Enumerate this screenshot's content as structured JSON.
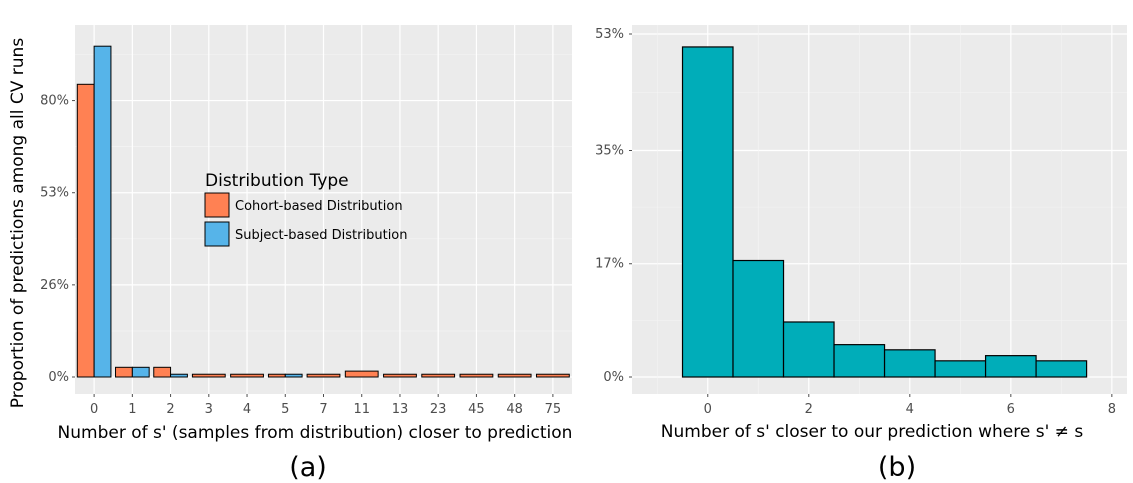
{
  "chart_data": [
    {
      "type": "bar",
      "panel_label": "(a)",
      "xlabel": "Number of s' (samples from distribution) closer to prediction",
      "ylabel": "Proportion of predictions among all CV runs",
      "categories": [
        "0",
        "1",
        "2",
        "3",
        "4",
        "5",
        "7",
        "11",
        "13",
        "23",
        "45",
        "48",
        "75"
      ],
      "yticks": [
        "0%",
        "26%",
        "53%",
        "80%"
      ],
      "ylim": [
        0,
        0.97
      ],
      "grid": true,
      "legend": {
        "title": "Distribution Type",
        "placement": "inside-center",
        "entries": [
          "Cohort-based Distribution",
          "Subject-based Distribution"
        ]
      },
      "series": [
        {
          "name": "Cohort-based Distribution",
          "color": "#ff8153",
          "values": [
            0.845,
            0.028,
            0.028,
            0.008,
            0.008,
            0.008,
            0.008,
            0.017,
            0.008,
            0.008,
            0.008,
            0.008,
            0.008
          ]
        },
        {
          "name": "Subject-based Distribution",
          "color": "#56b4e9",
          "values": [
            0.955,
            0.028,
            0.008,
            null,
            null,
            0.008,
            null,
            null,
            null,
            null,
            null,
            null,
            null
          ]
        }
      ]
    },
    {
      "type": "bar",
      "panel_label": "(b)",
      "xlabel": "Number of s' closer to our prediction where s' ≠ s",
      "ylabel": "",
      "bar_color": "#00adb9",
      "bins": [
        0,
        1,
        2,
        3,
        4,
        5,
        6,
        7
      ],
      "values": [
        0.51,
        0.18,
        0.085,
        0.05,
        0.042,
        0.025,
        0.033,
        0.025
      ],
      "xticks": [
        "0",
        "2",
        "4",
        "6",
        "8"
      ],
      "yticks": [
        "0%",
        "17%",
        "35%",
        "53%"
      ],
      "xlim": [
        -1.5,
        8.3
      ],
      "ylim": [
        -0.02,
        0.53
      ],
      "grid": true
    }
  ]
}
